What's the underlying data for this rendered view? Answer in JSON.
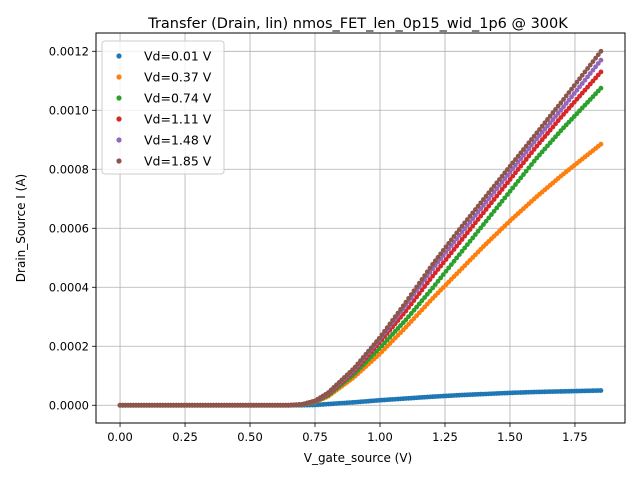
{
  "chart_data": {
    "type": "scatter",
    "title": "Transfer (Drain, lin) nmos_FET_len_0p15_wid_1p6 @ 300K",
    "xlabel": "V_gate_source (V)",
    "ylabel": "Drain_Source I (A)",
    "xlim": [
      -0.0925,
      1.9425
    ],
    "ylim": [
      -6.01e-05,
      0.001262
    ],
    "xticks": [
      "0.00",
      "0.25",
      "0.50",
      "0.75",
      "1.00",
      "1.25",
      "1.50",
      "1.75"
    ],
    "xtick_values": [
      0,
      0.25,
      0.5,
      0.75,
      1.0,
      1.25,
      1.5,
      1.75
    ],
    "yticks": [
      "0.0000",
      "0.0002",
      "0.0004",
      "0.0006",
      "0.0008",
      "0.0010",
      "0.0012"
    ],
    "ytick_values": [
      0,
      0.0002,
      0.0004,
      0.0006,
      0.0008,
      0.001,
      0.0012
    ],
    "grid": true,
    "legend_position": "top-left",
    "series": [
      {
        "name": "Vd=0.01 V",
        "color": "#1f77b4",
        "x": [
          0.0,
          0.5,
          0.65,
          0.7,
          0.75,
          0.8,
          0.9,
          1.0,
          1.1,
          1.2,
          1.3,
          1.4,
          1.5,
          1.6,
          1.7,
          1.85
        ],
        "y": [
          0.0,
          0.0,
          0.0,
          0.0,
          1e-06,
          4e-06,
          1e-05,
          1.7e-05,
          2.3e-05,
          2.9e-05,
          3.4e-05,
          3.8e-05,
          4.2e-05,
          4.5e-05,
          4.7e-05,
          5e-05
        ]
      },
      {
        "name": "Vd=0.37 V",
        "color": "#ff7f0e",
        "x": [
          0.0,
          0.5,
          0.65,
          0.7,
          0.75,
          0.8,
          0.9,
          1.0,
          1.1,
          1.2,
          1.3,
          1.4,
          1.5,
          1.6,
          1.7,
          1.85
        ],
        "y": [
          0.0,
          0.0,
          0.0,
          2e-06,
          1.1e-05,
          3e-05,
          9.5e-05,
          0.000175,
          0.000265,
          0.00036,
          0.00045,
          0.00054,
          0.000625,
          0.000705,
          0.00078,
          0.000885
        ]
      },
      {
        "name": "Vd=0.74 V",
        "color": "#2ca02c",
        "x": [
          0.0,
          0.5,
          0.65,
          0.7,
          0.75,
          0.8,
          0.9,
          1.0,
          1.1,
          1.2,
          1.3,
          1.4,
          1.5,
          1.6,
          1.7,
          1.85
        ],
        "y": [
          0.0,
          0.0,
          0.0,
          2e-06,
          1.2e-05,
          3.3e-05,
          0.000105,
          0.000195,
          0.00029,
          0.000395,
          0.000505,
          0.000615,
          0.000725,
          0.000835,
          0.000935,
          0.001075
        ]
      },
      {
        "name": "Vd=1.11 V",
        "color": "#d62728",
        "x": [
          0.0,
          0.5,
          0.65,
          0.7,
          0.75,
          0.8,
          0.9,
          1.0,
          1.1,
          1.2,
          1.3,
          1.4,
          1.5,
          1.6,
          1.7,
          1.85
        ],
        "y": [
          0.0,
          0.0,
          0.0,
          3e-06,
          1.3e-05,
          3.7e-05,
          0.000115,
          0.000215,
          0.00032,
          0.000435,
          0.000545,
          0.000655,
          0.000765,
          0.000875,
          0.00098,
          0.00113
        ]
      },
      {
        "name": "Vd=1.48 V",
        "color": "#9467bd",
        "x": [
          0.0,
          0.5,
          0.65,
          0.7,
          0.75,
          0.8,
          0.9,
          1.0,
          1.1,
          1.2,
          1.3,
          1.4,
          1.5,
          1.6,
          1.7,
          1.85
        ],
        "y": [
          0.0,
          0.0,
          0.0,
          3e-06,
          1.4e-05,
          4e-05,
          0.00012,
          0.000225,
          0.00034,
          0.00046,
          0.00057,
          0.00068,
          0.00079,
          0.0009,
          0.001005,
          0.00117
        ]
      },
      {
        "name": "Vd=1.85 V",
        "color": "#8c564b",
        "x": [
          0.0,
          0.5,
          0.65,
          0.7,
          0.75,
          0.8,
          0.9,
          1.0,
          1.1,
          1.2,
          1.3,
          1.4,
          1.5,
          1.6,
          1.7,
          1.85
        ],
        "y": [
          0.0,
          0.0,
          0.0,
          3e-06,
          1.5e-05,
          4.2e-05,
          0.000125,
          0.00023,
          0.00035,
          0.000475,
          0.00059,
          0.0007,
          0.00081,
          0.00092,
          0.00103,
          0.0012
        ]
      }
    ]
  }
}
